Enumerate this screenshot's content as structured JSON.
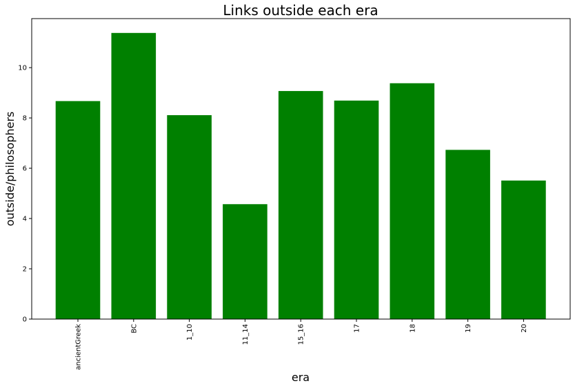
{
  "chart_data": {
    "type": "bar",
    "title": "Links outside each era",
    "xlabel": "era",
    "ylabel": "outside/philosophers",
    "categories": [
      "ancientGreek",
      "BC",
      "1_10",
      "11_14",
      "15_16",
      "17",
      "18",
      "19",
      "20"
    ],
    "values": [
      8.67,
      11.38,
      8.11,
      4.57,
      9.07,
      8.69,
      9.38,
      6.73,
      5.51
    ],
    "ylim": [
      0,
      11.95
    ],
    "yticks": [
      0,
      2,
      4,
      6,
      8,
      10
    ],
    "bar_color": "#008000",
    "grid": false,
    "legend": "none"
  }
}
